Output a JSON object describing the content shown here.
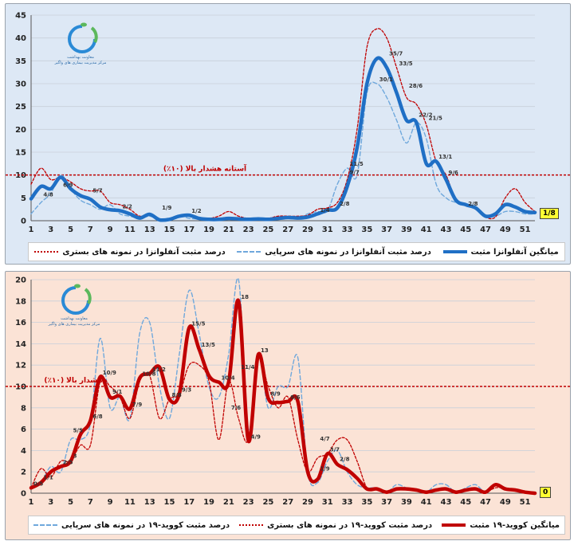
{
  "charts": [
    {
      "type": "line",
      "x": [
        1,
        2,
        3,
        4,
        5,
        6,
        7,
        8,
        9,
        10,
        11,
        12,
        13,
        14,
        15,
        16,
        17,
        18,
        19,
        20,
        21,
        22,
        23,
        24,
        25,
        26,
        27,
        28,
        29,
        30,
        31,
        32,
        33,
        34,
        35,
        36,
        37,
        38,
        39,
        40,
        41,
        42,
        43,
        44,
        45,
        46,
        47,
        48,
        49,
        50,
        51,
        52
      ],
      "x_tick_labels": [
        "1",
        "3",
        "5",
        "7",
        "9",
        "11",
        "13",
        "15",
        "17",
        "19",
        "21",
        "23",
        "25",
        "27",
        "29",
        "31",
        "33",
        "35",
        "37",
        "39",
        "41",
        "43",
        "45",
        "47",
        "49",
        "51"
      ],
      "ylim": [
        0,
        45
      ],
      "y_ticks": [
        0,
        5,
        10,
        15,
        20,
        25,
        30,
        35,
        40,
        45
      ],
      "threshold": {
        "value": 10,
        "label": "آستانه هشدار بالا (۱۰٪)"
      },
      "series": [
        {
          "name": "میانگین آنفلوانزا مثبت",
          "color": "#1f6fc5",
          "style": "solid-thick",
          "values": [
            4.8,
            7.5,
            7,
            9.5,
            7,
            5.5,
            4.7,
            3,
            2.4,
            2.2,
            1.5,
            0.6,
            1.4,
            0.2,
            0.3,
            1,
            1.2,
            0.5,
            0.3,
            0.3,
            0.5,
            0.4,
            0.3,
            0.4,
            0.3,
            0.5,
            0.7,
            0.6,
            0.8,
            1.5,
            2.3,
            2.8,
            7.5,
            16,
            30,
            35.5,
            33.5,
            28,
            22,
            21.5,
            12.5,
            13,
            9,
            4.5,
            3.5,
            2.8,
            1,
            1.5,
            3.5,
            3,
            2,
            1.8
          ]
        },
        {
          "name": "درصد مثبت آنفلوانزا در نمونه های سرپایی",
          "color": "#6fa8dc",
          "style": "dashed",
          "values": [
            1.5,
            4,
            6,
            10,
            7,
            4.5,
            3.5,
            2.5,
            3.5,
            1.5,
            1,
            0.5,
            1,
            0.2,
            0.5,
            1.2,
            0.5,
            0.4,
            0.3,
            0.5,
            0.5,
            0.5,
            0.3,
            0.3,
            0.5,
            0.8,
            0.5,
            0.5,
            1.5,
            2,
            2.2,
            8,
            11.5,
            10,
            28,
            30,
            27,
            22,
            17,
            21.5,
            18,
            8,
            5,
            4,
            3.5,
            3,
            1,
            1,
            2,
            2,
            1.5,
            1.5
          ]
        },
        {
          "name": "درصد مثبت آنفلوانزا در نمونه های بستری",
          "color": "#c00000",
          "style": "dotted",
          "values": [
            8,
            11.5,
            9,
            9.5,
            8.5,
            7,
            6.5,
            6.5,
            4,
            3.5,
            2.5,
            1,
            1.5,
            0.3,
            0.4,
            1,
            1,
            0.5,
            0.5,
            1,
            2,
            1,
            0.5,
            0.5,
            0.5,
            1,
            1,
            1,
            1.2,
            2.5,
            2.8,
            4,
            9,
            20,
            38,
            42,
            40,
            33.5,
            27,
            25.5,
            21,
            13,
            10,
            4.5,
            3.5,
            2.5,
            0.8,
            0.8,
            5,
            7,
            4,
            2
          ]
        }
      ],
      "data_labels": [
        {
          "x": 2,
          "y": 4.8,
          "text": "4/8"
        },
        {
          "x": 4,
          "y": 6.9,
          "text": "6/9"
        },
        {
          "x": 7,
          "y": 5.7,
          "text": "5/7"
        },
        {
          "x": 10,
          "y": 2.2,
          "text": "2/2"
        },
        {
          "x": 14,
          "y": 1.9,
          "text": "1/9"
        },
        {
          "x": 17,
          "y": 1.2,
          "text": "1/2"
        },
        {
          "x": 30,
          "y": 1.4,
          "text": "1/4"
        },
        {
          "x": 32,
          "y": 2.8,
          "text": "2/8"
        },
        {
          "x": 33,
          "y": 9.7,
          "text": "9/7"
        },
        {
          "x": 33,
          "y": 11.5,
          "text": "11/5"
        },
        {
          "x": 36,
          "y": 30,
          "text": "30/1"
        },
        {
          "x": 37,
          "y": 35.7,
          "text": "35/7"
        },
        {
          "x": 38,
          "y": 33.5,
          "text": "33/5"
        },
        {
          "x": 39,
          "y": 28.6,
          "text": "28/6"
        },
        {
          "x": 40,
          "y": 22.2,
          "text": "22/2"
        },
        {
          "x": 41,
          "y": 21.5,
          "text": "21/5"
        },
        {
          "x": 42,
          "y": 13.1,
          "text": "13/1"
        },
        {
          "x": 43,
          "y": 9.6,
          "text": "9/6"
        },
        {
          "x": 45,
          "y": 2.8,
          "text": "2/8"
        }
      ],
      "last_value_badge": "1/8",
      "legend_items": [
        "میانگین آنفلوانزا مثبت",
        "درصد مثبت آنفلوانزا در نمونه های سرپایی",
        "درصد مثبت آنفلوانزا در نمونه های بستری"
      ]
    },
    {
      "type": "line",
      "x": [
        1,
        2,
        3,
        4,
        5,
        6,
        7,
        8,
        9,
        10,
        11,
        12,
        13,
        14,
        15,
        16,
        17,
        18,
        19,
        20,
        21,
        22,
        23,
        24,
        25,
        26,
        27,
        28,
        29,
        30,
        31,
        32,
        33,
        34,
        35,
        36,
        37,
        38,
        39,
        40,
        41,
        42,
        43,
        44,
        45,
        46,
        47,
        48,
        49,
        50,
        51,
        52
      ],
      "x_tick_labels": [
        "1",
        "3",
        "5",
        "7",
        "9",
        "11",
        "13",
        "15",
        "17",
        "19",
        "21",
        "23",
        "25",
        "27",
        "29",
        "31",
        "33",
        "35",
        "37",
        "39",
        "41",
        "43",
        "45",
        "47",
        "49",
        "51"
      ],
      "ylim": [
        0,
        20
      ],
      "y_ticks": [
        0,
        2,
        4,
        6,
        8,
        10,
        12,
        14,
        16,
        18,
        20
      ],
      "threshold": {
        "value": 10,
        "label": "هشدار بالا (۱۰٪)"
      },
      "series": [
        {
          "name": "میانگین کووید-۱۹ مثبت",
          "color": "#c00000",
          "style": "solid-thick",
          "values": [
            0.5,
            1,
            2,
            2.5,
            3,
            5.5,
            6.8,
            10.9,
            9,
            9.1,
            7.9,
            10.8,
            11.2,
            11.8,
            8.8,
            9.3,
            15.5,
            13.5,
            11,
            10.4,
            10.4,
            18,
            4.9,
            13,
            8.9,
            8.5,
            8.6,
            8.6,
            2,
            1.3,
            3.7,
            2.7,
            2.2,
            1.4,
            0.4,
            0.4,
            0.1,
            0.4,
            0.4,
            0.3,
            0.1,
            0.3,
            0.4,
            0.1,
            0.3,
            0.4,
            0.1,
            0.8,
            0.4,
            0.3,
            0.1,
            0
          ]
        },
        {
          "name": "درصد مثبت کووید-۱۹ در نمونه های سرپایی",
          "color": "#6fa8dc",
          "style": "dashed",
          "values": [
            0.5,
            1,
            2.5,
            2,
            5,
            5,
            6.5,
            14.5,
            8,
            9,
            7,
            15,
            16,
            10,
            7,
            13,
            19,
            15,
            10,
            9,
            13,
            20,
            6,
            13,
            8,
            10,
            10,
            12.7,
            2,
            1,
            3,
            4,
            2,
            0.8,
            0.5,
            0.5,
            0.1,
            0.8,
            0.5,
            0.3,
            0.1,
            0.8,
            0.8,
            0.1,
            0.5,
            0.8,
            0.1,
            0.8,
            0.3,
            0.3,
            0.1,
            0
          ]
        },
        {
          "name": "درصد مثبت کووید-۱۹ در نمونه های بستری",
          "color": "#c00000",
          "style": "dotted",
          "values": [
            0.5,
            2.3,
            1.5,
            3,
            3,
            4.5,
            4.5,
            10.5,
            10,
            9,
            7,
            10.5,
            11,
            7,
            8.8,
            9.3,
            12,
            12,
            10.5,
            5,
            10.5,
            7,
            5,
            12.5,
            10,
            8,
            9,
            5,
            2,
            3.3,
            3.7,
            5,
            5,
            3,
            0.5,
            0.5,
            0.1,
            0.3,
            0.5,
            0.3,
            0.1,
            0.3,
            0.3,
            0.1,
            0.3,
            0.3,
            0.1,
            0.5,
            0.5,
            0.3,
            0.1,
            0
          ]
        }
      ],
      "data_labels": [
        {
          "x": 1,
          "y": 0.5,
          "text": "0/5"
        },
        {
          "x": 2,
          "y": 1.1,
          "text": "1/1"
        },
        {
          "x": 4,
          "y": 2.5,
          "text": "2/5"
        },
        {
          "x": 5,
          "y": 3.1,
          "text": "3"
        },
        {
          "x": 5,
          "y": 5.5,
          "text": "5/5"
        },
        {
          "x": 7,
          "y": 6.8,
          "text": "6/8"
        },
        {
          "x": 8,
          "y": 10.9,
          "text": "10/9"
        },
        {
          "x": 9,
          "y": 9.1,
          "text": "9/1"
        },
        {
          "x": 11,
          "y": 7.9,
          "text": "7/9"
        },
        {
          "x": 12,
          "y": 10.8,
          "text": "10/8"
        },
        {
          "x": 13,
          "y": 11.2,
          "text": "11/2"
        },
        {
          "x": 15,
          "y": 8.8,
          "text": "8/8"
        },
        {
          "x": 16,
          "y": 9.3,
          "text": "9/3"
        },
        {
          "x": 17,
          "y": 15.5,
          "text": "15/5"
        },
        {
          "x": 18,
          "y": 13.5,
          "text": "13/5"
        },
        {
          "x": 20,
          "y": 10.4,
          "text": "10/4"
        },
        {
          "x": 21,
          "y": 7.6,
          "text": "7/6"
        },
        {
          "x": 22,
          "y": 18,
          "text": "18"
        },
        {
          "x": 22,
          "y": 11.4,
          "text": "11/4"
        },
        {
          "x": 23,
          "y": 4.9,
          "text": "4/9"
        },
        {
          "x": 24,
          "y": 13,
          "text": "13"
        },
        {
          "x": 25,
          "y": 8.9,
          "text": "8/9"
        },
        {
          "x": 27,
          "y": 8.6,
          "text": "8/6"
        },
        {
          "x": 30,
          "y": 4.7,
          "text": "4/7"
        },
        {
          "x": 30,
          "y": 1.9,
          "text": "1/9"
        },
        {
          "x": 31,
          "y": 3.7,
          "text": "3/7"
        },
        {
          "x": 32,
          "y": 2.8,
          "text": "2/8"
        }
      ],
      "last_value_badge": "0",
      "legend_items": [
        "میانگین کووید-۱۹ مثبت",
        "درصد مثبت کووید-۱۹ در نمونه های بستری",
        "درصد مثبت کووید-۱۹ در نمونه های سرپایی"
      ]
    }
  ],
  "logo": {
    "line1": "معاونت بهداشت",
    "line2": "مرکز مدیریت بیماری های واگیر"
  },
  "colors": {
    "threshold": "#c00000",
    "grid": "#c8d0da",
    "panel_top": "#dde8f5",
    "panel_bottom": "#fbe3d6"
  }
}
